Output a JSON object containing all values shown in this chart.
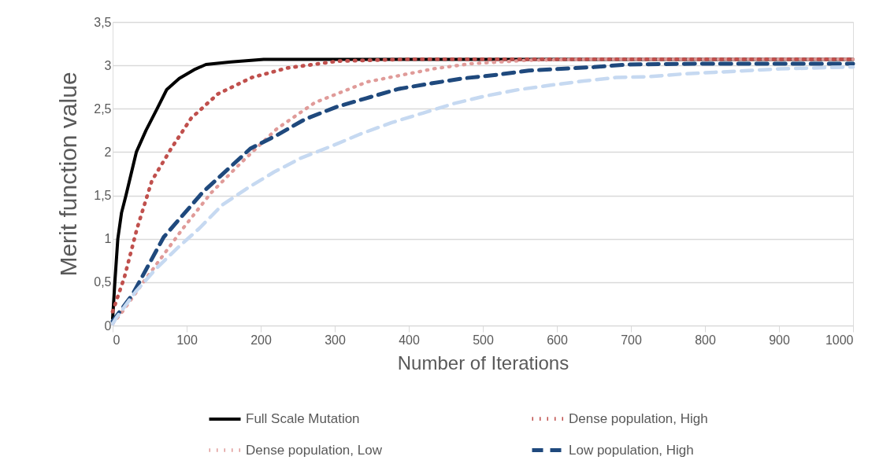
{
  "chart_data": {
    "type": "line",
    "xlabel": "Number of Iterations",
    "ylabel": "Merit function value",
    "xlim": [
      0,
      1000
    ],
    "xticks": [
      0,
      100,
      200,
      300,
      400,
      500,
      600,
      700,
      800,
      900,
      1000
    ],
    "ylim": [
      0,
      3.5
    ],
    "yticks": [
      0,
      {
        "value": 0.5,
        "label": "0,5"
      },
      1,
      {
        "value": 1.5,
        "label": "1,5"
      },
      2,
      {
        "value": 2.5,
        "label": "2,5"
      },
      3,
      {
        "value": 3.5,
        "label": "3,5"
      }
    ],
    "grid": "y",
    "legend": "bottom",
    "series": [
      {
        "name": "Full Scale Mutation",
        "color": "#000000",
        "line_style": "solid",
        "x": [
          0,
          3,
          7,
          12,
          18,
          25,
          32,
          45,
          60,
          73,
          90,
          110,
          126,
          160,
          204,
          300,
          500,
          1000
        ],
        "values": [
          0.08,
          0.5,
          1.0,
          1.3,
          1.5,
          1.75,
          2.0,
          2.25,
          2.5,
          2.72,
          2.85,
          2.95,
          3.01,
          3.04,
          3.07,
          3.07,
          3.07,
          3.07
        ]
      },
      {
        "name": "Dense population, Low",
        "color": "#e09b99",
        "line_style": "dotted",
        "x": [
          0,
          15,
          44,
          95,
          133,
          175,
          222,
          273,
          344,
          433,
          484,
          562,
          650,
          800,
          1000
        ],
        "values": [
          0.02,
          0.18,
          0.53,
          1.12,
          1.53,
          1.89,
          2.27,
          2.57,
          2.81,
          2.96,
          3.02,
          3.06,
          3.07,
          3.07,
          3.07
        ]
      },
      {
        "name": "Dense population, High",
        "color": "#c0504d",
        "line_style": "dotted",
        "x": [
          0,
          16,
          33,
          53,
          79,
          106,
          142,
          188,
          236,
          305,
          400,
          600,
          1000
        ],
        "values": [
          0.16,
          0.56,
          1.12,
          1.67,
          2.04,
          2.39,
          2.67,
          2.86,
          2.97,
          3.05,
          3.07,
          3.07,
          3.07
        ]
      },
      {
        "name": "Low population, High",
        "color": "#1f497d",
        "line_style": "dashed",
        "x": [
          0,
          27,
          69,
          122,
          186,
          223,
          260,
          302,
          342,
          387,
          429,
          473,
          518,
          562,
          606,
          650,
          695,
          800,
          1000
        ],
        "values": [
          0.05,
          0.36,
          1.02,
          1.54,
          2.04,
          2.2,
          2.38,
          2.52,
          2.62,
          2.73,
          2.79,
          2.85,
          2.89,
          2.94,
          2.96,
          2.98,
          3.01,
          3.02,
          3.02
        ]
      },
      {
        "color": "#c6d9f1",
        "line_style": "dashed",
        "x": [
          0,
          5,
          31,
          58,
          87,
          117,
          148,
          183,
          218,
          254,
          296,
          335,
          377,
          419,
          461,
          505,
          548,
          590,
          636,
          680,
          725,
          769,
          813,
          858,
          902,
          946,
          990,
          1000
        ],
        "values": [
          0.02,
          0.09,
          0.39,
          0.65,
          0.89,
          1.12,
          1.39,
          1.59,
          1.77,
          1.93,
          2.07,
          2.21,
          2.34,
          2.45,
          2.56,
          2.65,
          2.72,
          2.77,
          2.82,
          2.86,
          2.87,
          2.9,
          2.92,
          2.94,
          2.96,
          2.97,
          2.98,
          2.98
        ]
      }
    ]
  }
}
